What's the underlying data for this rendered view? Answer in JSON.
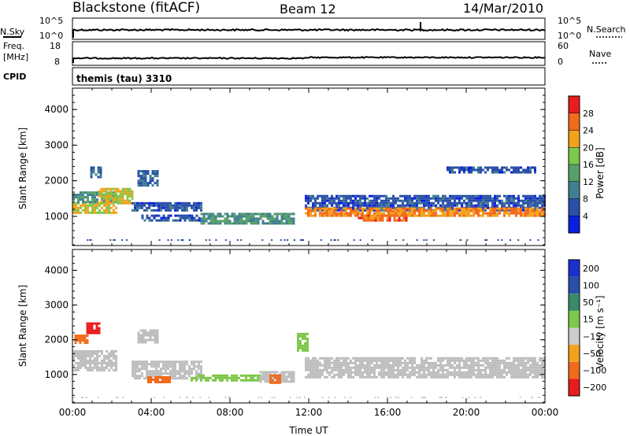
{
  "header": {
    "station": "Blackstone (fitACF)",
    "beam": "Beam 12",
    "date": "14/Mar/2010"
  },
  "strip_panels": {
    "nsky": {
      "label": "N.Sky",
      "left_ticks": [
        "10^5",
        "10^0"
      ],
      "right_label": "N.Search",
      "right_ticks": [
        "10^5",
        "10^0"
      ]
    },
    "freq": {
      "label_top": "Freq.",
      "label_unit": "[MHz]",
      "left_ticks": [
        "18",
        "8"
      ],
      "right_label": "Nave",
      "right_ticks": [
        "60",
        "0"
      ]
    },
    "cpid": {
      "label": "CPID",
      "value": "themis (tau) 3310"
    }
  },
  "colors": {
    "power_scale": [
      "#0b1fe0",
      "#2a4fa8",
      "#3f7f8f",
      "#57a06a",
      "#7ec84a",
      "#f3a21c",
      "#f26a1c",
      "#e81c1c"
    ],
    "velocity_scale": [
      "#e81c1c",
      "#f26a1c",
      "#f3a21c",
      "#cccccc",
      "#7ec84a",
      "#3a8a6a",
      "#2a4fa8",
      "#1a2fd0"
    ],
    "ground_scatter": "#bebebe"
  },
  "chart_data": [
    {
      "type": "heatmap",
      "name": "power",
      "xlabel": "",
      "ylabel": "Slant Range [km]",
      "xlim": [
        0,
        24
      ],
      "ylim": [
        180,
        4600
      ],
      "yticks": [
        "1000",
        "2000",
        "3000",
        "4000"
      ],
      "colorbar": {
        "label": "Power [dB]",
        "ticks": [
          "4",
          "8",
          "12",
          "16",
          "20",
          "24",
          "28"
        ],
        "range": [
          0,
          32
        ]
      },
      "regions": [
        {
          "t": [
            0.0,
            2.2
          ],
          "range": [
            1080,
            1400
          ],
          "dB": 20
        },
        {
          "t": [
            0.0,
            2.2
          ],
          "range": [
            1400,
            1700
          ],
          "dB": 12
        },
        {
          "t": [
            1.3,
            3.0
          ],
          "range": [
            1400,
            1800
          ],
          "dB": 20
        },
        {
          "t": [
            0.9,
            1.4
          ],
          "range": [
            2100,
            2400
          ],
          "dB": 8
        },
        {
          "t": [
            3.3,
            4.3
          ],
          "range": [
            1900,
            2300
          ],
          "dB": 8
        },
        {
          "t": [
            3.0,
            6.5
          ],
          "range": [
            1150,
            1400
          ],
          "dB": 6
        },
        {
          "t": [
            3.5,
            6.5
          ],
          "range": [
            880,
            1050
          ],
          "dB": 6
        },
        {
          "t": [
            6.5,
            11.2
          ],
          "range": [
            780,
            1100
          ],
          "dB": 12
        },
        {
          "t": [
            11.8,
            24.0
          ],
          "range": [
            1200,
            1600
          ],
          "dB": 6
        },
        {
          "t": [
            11.8,
            24.0
          ],
          "range": [
            1000,
            1250
          ],
          "dB": 24
        },
        {
          "t": [
            14.5,
            17.0
          ],
          "range": [
            880,
            1050
          ],
          "dB": 26
        },
        {
          "t": [
            19.0,
            23.5
          ],
          "range": [
            2250,
            2400
          ],
          "dB": 6
        }
      ]
    },
    {
      "type": "heatmap",
      "name": "velocity",
      "xlabel": "Time UT",
      "ylabel": "Slant Range [km]",
      "xlim": [
        0,
        24
      ],
      "ylim": [
        180,
        4600
      ],
      "xticks": [
        "00:00",
        "04:00",
        "08:00",
        "12:00",
        "16:00",
        "20:00",
        "00:00"
      ],
      "yticks": [
        "1000",
        "2000",
        "3000",
        "4000"
      ],
      "colorbar": {
        "label": "Velocity [m s⁻¹]",
        "ticks": [
          "200",
          "100",
          "50",
          "15",
          "−15",
          "−50",
          "−100",
          "−200"
        ]
      },
      "regions": [
        {
          "t": [
            0.0,
            2.2
          ],
          "range": [
            1100,
            1700
          ],
          "v": 0
        },
        {
          "t": [
            0.1,
            0.8
          ],
          "range": [
            1900,
            2150
          ],
          "v": -60
        },
        {
          "t": [
            0.7,
            1.4
          ],
          "range": [
            2200,
            2500
          ],
          "v": -250
        },
        {
          "t": [
            3.3,
            4.3
          ],
          "range": [
            1900,
            2300
          ],
          "v": 0
        },
        {
          "t": [
            3.0,
            6.5
          ],
          "range": [
            880,
            1400
          ],
          "v": 0
        },
        {
          "t": [
            3.8,
            5.0
          ],
          "range": [
            750,
            950
          ],
          "v": -60
        },
        {
          "t": [
            6.0,
            9.5
          ],
          "range": [
            800,
            1000
          ],
          "v": 30
        },
        {
          "t": [
            9.5,
            11.2
          ],
          "range": [
            800,
            1100
          ],
          "v": 0
        },
        {
          "t": [
            10.0,
            10.6
          ],
          "range": [
            750,
            1000
          ],
          "v": -60
        },
        {
          "t": [
            11.8,
            24.0
          ],
          "range": [
            950,
            1500
          ],
          "v": 0
        },
        {
          "t": [
            11.4,
            11.9
          ],
          "range": [
            1700,
            2200
          ],
          "v": 30
        }
      ]
    }
  ]
}
